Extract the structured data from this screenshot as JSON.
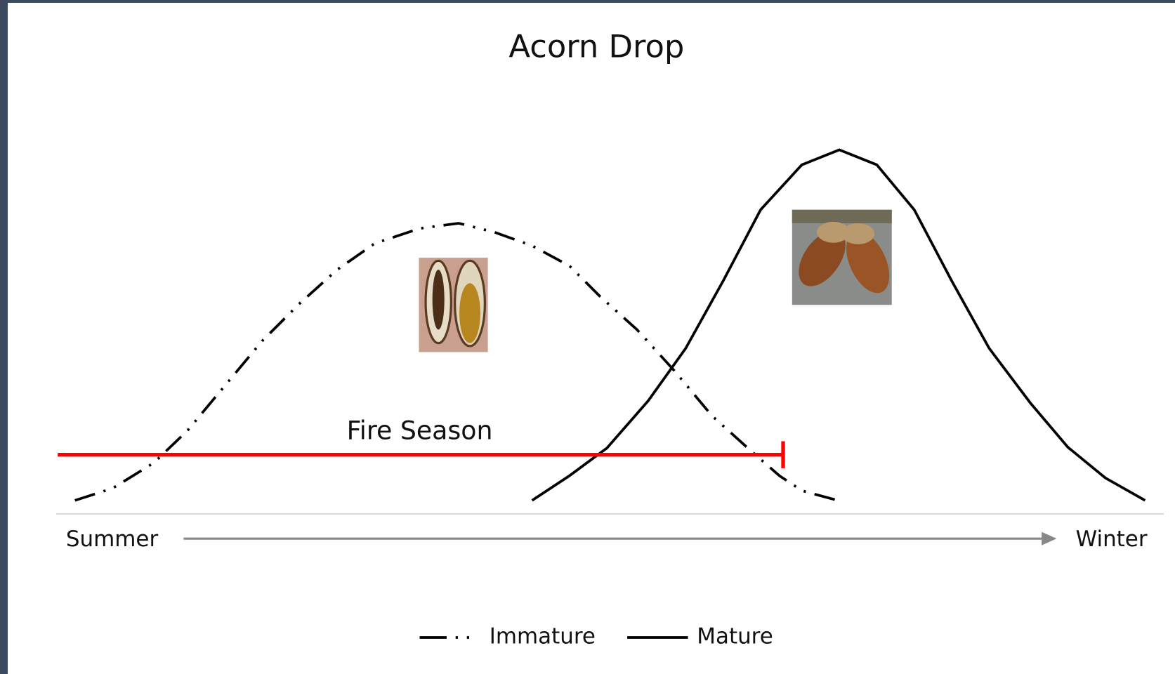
{
  "title": "Acorn Drop",
  "annotation": "Fire Season",
  "axis": {
    "start": "Summer",
    "end": "Winter"
  },
  "legend": {
    "items": [
      "Immature",
      "Mature"
    ]
  }
}
